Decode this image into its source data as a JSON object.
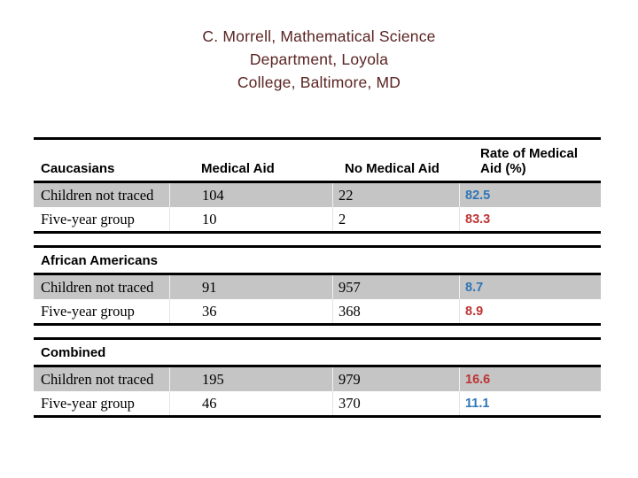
{
  "slide": {
    "background": "#FFFFFF"
  },
  "title": {
    "color": "#5A2422",
    "lines": [
      "C. Morrell, Mathematical Science",
      "Department, Loyola",
      "College, Baltimore, MD"
    ]
  },
  "table": {
    "colors": {
      "row_shade": "#C5C5C5",
      "border": "#000000",
      "rate_blue": "#2E75B6",
      "rate_red": "#BE3333"
    },
    "header": {
      "group": "Caucasians",
      "col_medical_aid": "Medical Aid",
      "col_no_medical_aid": "No Medical Aid",
      "col_rate_line1": "Rate of Medical",
      "col_rate_line2": "Aid (%)"
    },
    "sections": [
      {
        "rows": [
          {
            "label": "Children not traced",
            "medical_aid": "104",
            "no_medical_aid": "22",
            "rate": "82.5",
            "rate_color": "#2E75B6"
          },
          {
            "label": "Five-year group",
            "medical_aid": "10",
            "no_medical_aid": "2",
            "rate": "83.3",
            "rate_color": "#BE3333"
          }
        ]
      },
      {
        "group": "African Americans",
        "rows": [
          {
            "label": "Children not traced",
            "medical_aid": "91",
            "no_medical_aid": "957",
            "rate": "8.7",
            "rate_color": "#2E75B6"
          },
          {
            "label": "Five-year group",
            "medical_aid": "36",
            "no_medical_aid": "368",
            "rate": "8.9",
            "rate_color": "#BE3333"
          }
        ]
      },
      {
        "group": "Combined",
        "rows": [
          {
            "label": "Children not traced",
            "medical_aid": "195",
            "no_medical_aid": "979",
            "rate": "16.6",
            "rate_color": "#BE3333"
          },
          {
            "label": "Five-year group",
            "medical_aid": "46",
            "no_medical_aid": "370",
            "rate": "11.1",
            "rate_color": "#2E75B6"
          }
        ]
      }
    ]
  }
}
